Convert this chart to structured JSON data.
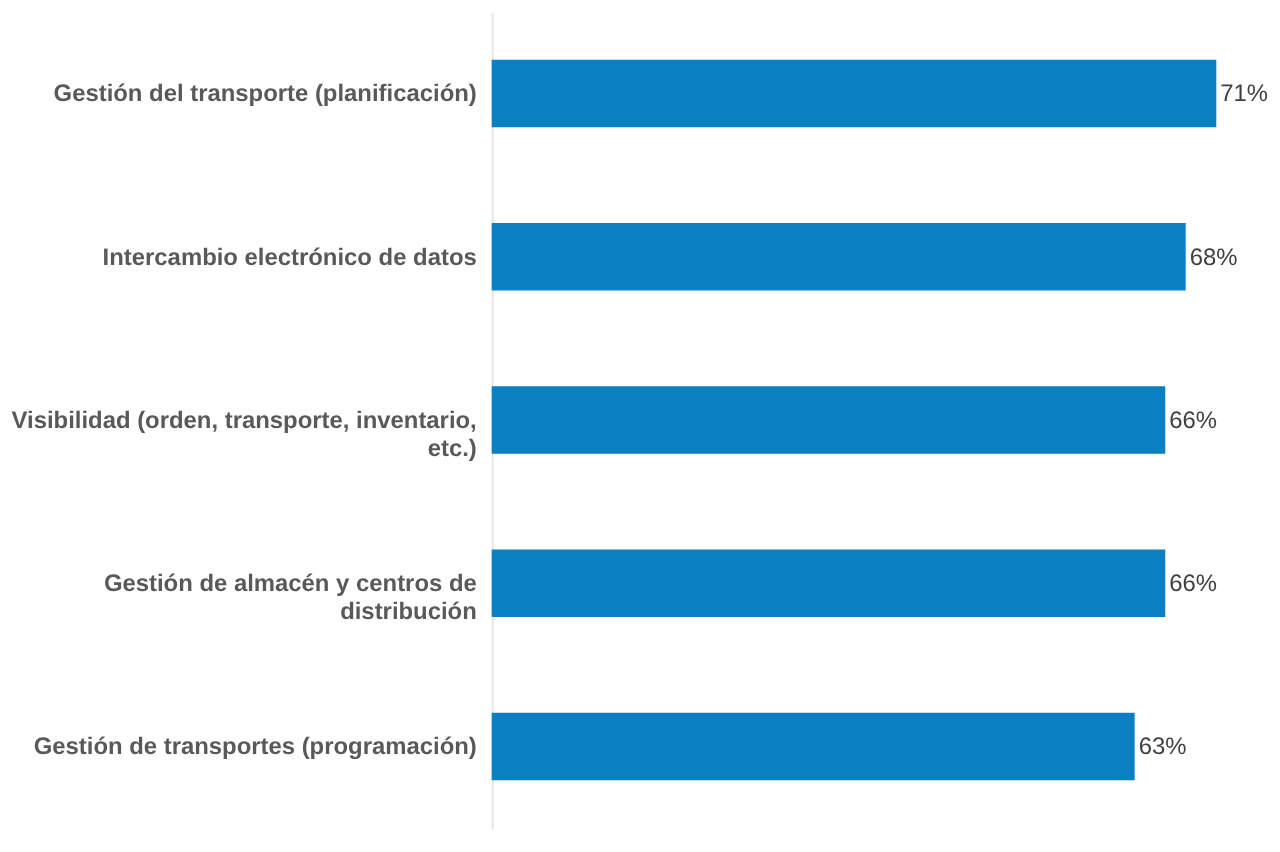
{
  "chart_data": {
    "type": "bar",
    "orientation": "horizontal",
    "categories": [
      "Gestión del transporte (planificación)",
      "Intercambio electrónico de datos",
      "Visibilidad (orden, transporte, inventario,\netc.)",
      "Gestión de almacén y centros de\ndistribución",
      "Gestión de transportes (programación)"
    ],
    "values": [
      71,
      68,
      66,
      66,
      63
    ],
    "value_labels": [
      "71%",
      "68%",
      "66%",
      "66%",
      "63%"
    ],
    "color": "#0a7fc2",
    "tick_labels": "y",
    "grid": false
  }
}
